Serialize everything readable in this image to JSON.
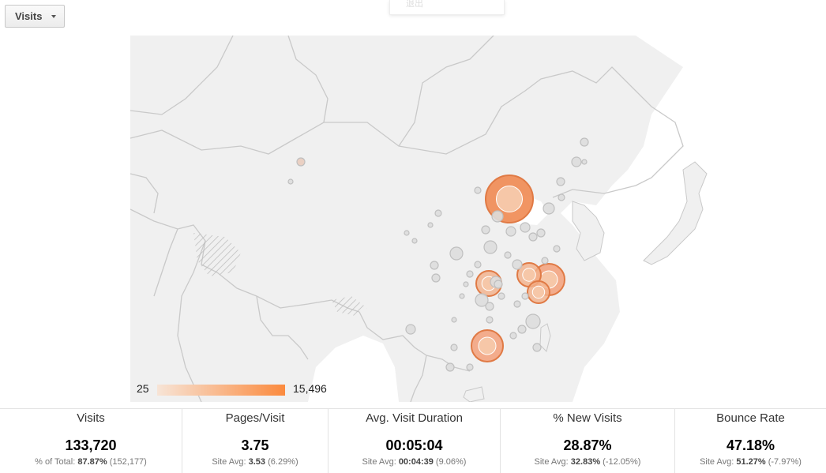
{
  "toolbar": {
    "metric_label": "Visits"
  },
  "popup": {
    "text": "退出"
  },
  "legend": {
    "min": "25",
    "max": "15,496",
    "color_low": "#f7e4d6",
    "color_high": "#fb8a3e"
  },
  "metrics": [
    {
      "title": "Visits",
      "value": "133,720",
      "sub_prefix": "% of Total:",
      "sub_main": "87.87%",
      "sub_rest": "(152,177)"
    },
    {
      "title": "Pages/Visit",
      "value": "3.75",
      "sub_prefix": "Site Avg:",
      "sub_main": "3.53",
      "sub_rest": "(6.29%)"
    },
    {
      "title": "Avg. Visit Duration",
      "value": "00:05:04",
      "sub_prefix": "Site Avg:",
      "sub_main": "00:04:39",
      "sub_rest": "(9.06%)"
    },
    {
      "title": "% New Visits",
      "value": "28.87%",
      "sub_prefix": "Site Avg:",
      "sub_main": "32.83%",
      "sub_rest": "(-12.05%)"
    },
    {
      "title": "Bounce Rate",
      "value": "47.18%",
      "sub_prefix": "Site Avg:",
      "sub_main": "51.27%",
      "sub_rest": "(-7.97%)"
    }
  ]
}
